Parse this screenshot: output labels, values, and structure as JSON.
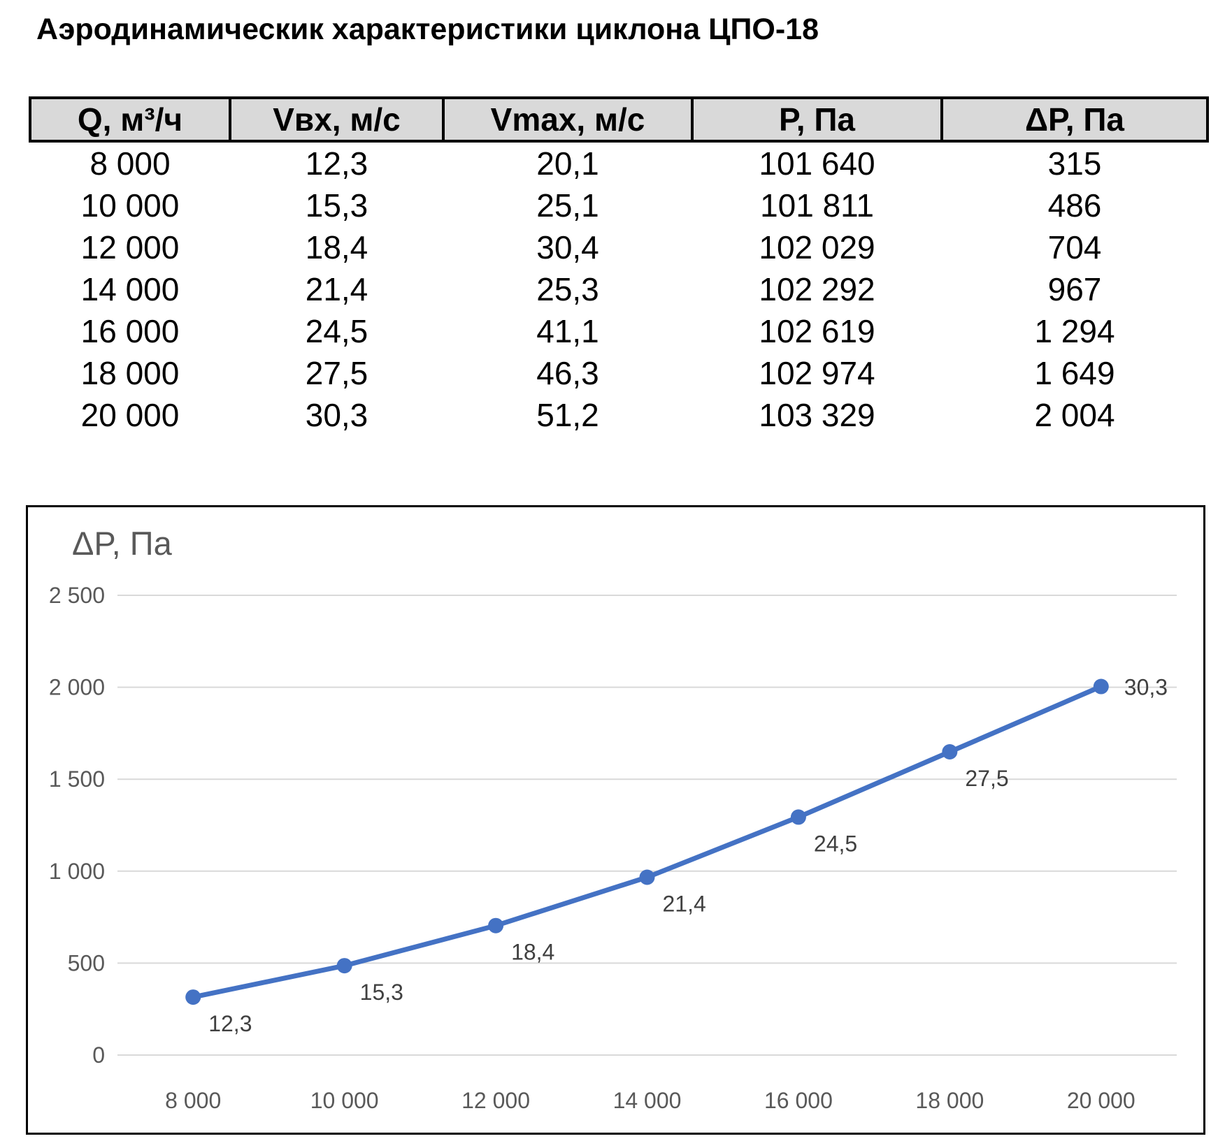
{
  "title": "Аэродинамическик характеристики циклона ЦПО-18",
  "table": {
    "headers": [
      "Q, м³/ч",
      "Vвх, м/с",
      "Vmax, м/с",
      "P, Па",
      "ΔP, Па"
    ],
    "rows": [
      [
        "8 000",
        "12,3",
        "20,1",
        "101 640",
        "315"
      ],
      [
        "10 000",
        "15,3",
        "25,1",
        "101 811",
        "486"
      ],
      [
        "12 000",
        "18,4",
        "30,4",
        "102 029",
        "704"
      ],
      [
        "14 000",
        "21,4",
        "25,3",
        "102 292",
        "967"
      ],
      [
        "16 000",
        "24,5",
        "41,1",
        "102 619",
        "1 294"
      ],
      [
        "18 000",
        "27,5",
        "46,3",
        "102 974",
        "1 649"
      ],
      [
        "20 000",
        "30,3",
        "51,2",
        "103 329",
        "2 004"
      ]
    ]
  },
  "chart_data": {
    "type": "line",
    "title": "",
    "ylabel": "ΔP, Па",
    "xlabel": "",
    "categories": [
      "8 000",
      "10 000",
      "12 000",
      "14 000",
      "16 000",
      "18 000",
      "20 000"
    ],
    "series": [
      {
        "values": [
          315,
          486,
          704,
          967,
          1294,
          1649,
          2004
        ],
        "data_labels": [
          "12,3",
          "15,3",
          "18,4",
          "21,4",
          "24,5",
          "27,5",
          "30,3"
        ],
        "color": "#4472c4"
      }
    ],
    "ylim": [
      0,
      2500
    ],
    "yticks": [
      {
        "value": 0,
        "label": "0"
      },
      {
        "value": 500,
        "label": "500"
      },
      {
        "value": 1000,
        "label": "1 000"
      },
      {
        "value": 1500,
        "label": "1 500"
      },
      {
        "value": 2000,
        "label": "2 000"
      },
      {
        "value": 2500,
        "label": "2 500"
      }
    ],
    "grid": true,
    "legend": "none",
    "gridline_color": "#d9d9d9",
    "text_color": "#595959"
  }
}
